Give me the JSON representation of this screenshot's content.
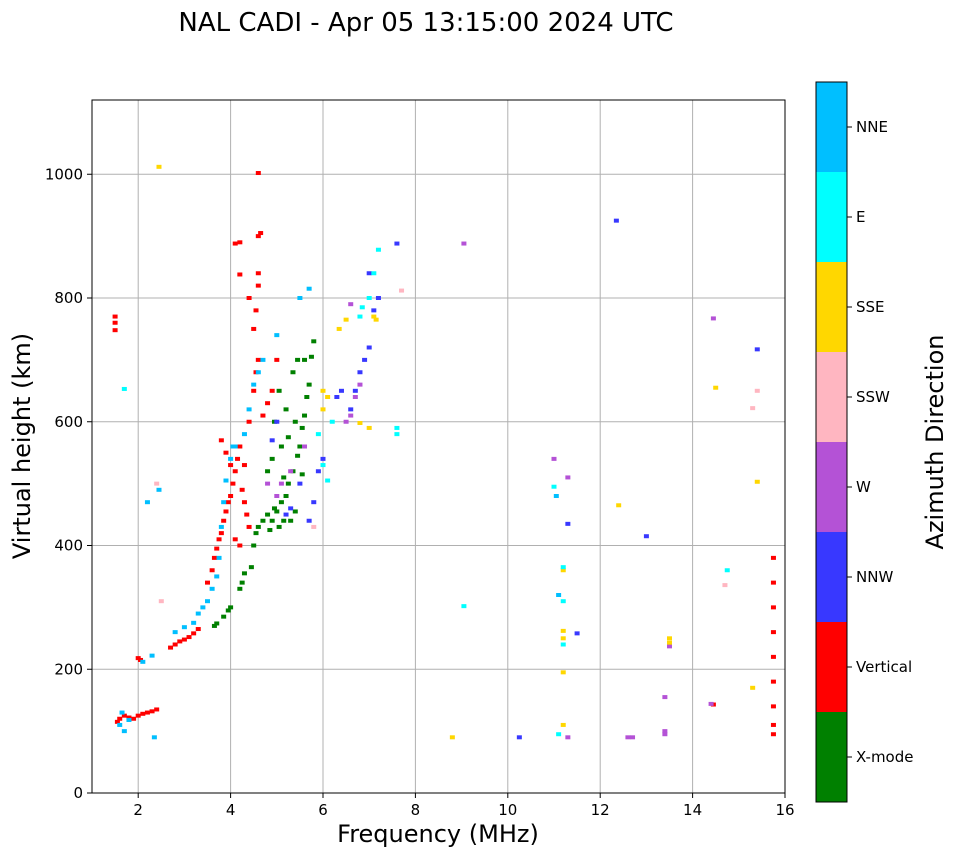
{
  "chart_data": {
    "type": "scatter",
    "title": "NAL CADI - Apr 05 13:15:00 2024 UTC",
    "xlabel": "Frequency (MHz)",
    "ylabel": "Virtual height (km)",
    "xlim": [
      1,
      16
    ],
    "ylim": [
      0,
      1120
    ],
    "xticks": [
      2,
      4,
      6,
      8,
      10,
      12,
      14,
      16
    ],
    "yticks": [
      0,
      200,
      400,
      600,
      800,
      1000
    ],
    "grid": true,
    "colorbar": {
      "label": "Azimuth Direction",
      "categories": [
        {
          "name": "X-mode",
          "color": "#008000"
        },
        {
          "name": "Vertical",
          "color": "#ff0000"
        },
        {
          "name": "NNW",
          "color": "#3838ff"
        },
        {
          "name": "W",
          "color": "#b452d6"
        },
        {
          "name": "SSW",
          "color": "#ffb6c1"
        },
        {
          "name": "SSE",
          "color": "#ffd700"
        },
        {
          "name": "E",
          "color": "#00ffff"
        },
        {
          "name": "NNE",
          "color": "#00bfff"
        }
      ]
    },
    "series": [
      {
        "name": "X-mode",
        "color": "#008000",
        "points": [
          [
            3.65,
            270
          ],
          [
            3.7,
            274
          ],
          [
            3.85,
            285
          ],
          [
            3.95,
            295
          ],
          [
            4.0,
            300
          ],
          [
            4.2,
            330
          ],
          [
            4.25,
            340
          ],
          [
            4.3,
            355
          ],
          [
            4.45,
            365
          ],
          [
            4.5,
            400
          ],
          [
            4.55,
            420
          ],
          [
            4.6,
            430
          ],
          [
            4.7,
            440
          ],
          [
            4.8,
            450
          ],
          [
            4.85,
            425
          ],
          [
            4.9,
            440
          ],
          [
            4.95,
            460
          ],
          [
            5.0,
            455
          ],
          [
            5.05,
            430
          ],
          [
            5.1,
            470
          ],
          [
            5.15,
            440
          ],
          [
            5.2,
            480
          ],
          [
            5.25,
            500
          ],
          [
            5.3,
            440
          ],
          [
            5.35,
            520
          ],
          [
            5.4,
            455
          ],
          [
            5.45,
            545
          ],
          [
            5.5,
            560
          ],
          [
            5.55,
            590
          ],
          [
            5.6,
            610
          ],
          [
            5.65,
            640
          ],
          [
            5.7,
            660
          ],
          [
            5.75,
            705
          ],
          [
            5.8,
            730
          ],
          [
            5.2,
            620
          ],
          [
            5.35,
            680
          ],
          [
            5.45,
            700
          ],
          [
            5.05,
            650
          ],
          [
            4.95,
            600
          ],
          [
            5.25,
            575
          ],
          [
            5.55,
            515
          ],
          [
            4.8,
            520
          ],
          [
            5.1,
            560
          ],
          [
            5.6,
            700
          ],
          [
            4.9,
            540
          ],
          [
            5.4,
            600
          ],
          [
            5.15,
            510
          ]
        ]
      },
      {
        "name": "Vertical",
        "color": "#ff0000",
        "points": [
          [
            1.5,
            770
          ],
          [
            1.5,
            760
          ],
          [
            1.5,
            748
          ],
          [
            1.55,
            115
          ],
          [
            1.6,
            120
          ],
          [
            1.7,
            125
          ],
          [
            1.8,
            122
          ],
          [
            1.9,
            120
          ],
          [
            2.0,
            125
          ],
          [
            2.1,
            128
          ],
          [
            2.2,
            130
          ],
          [
            2.3,
            132
          ],
          [
            2.4,
            135
          ],
          [
            2.0,
            218
          ],
          [
            2.05,
            215
          ],
          [
            2.7,
            235
          ],
          [
            2.8,
            240
          ],
          [
            2.9,
            245
          ],
          [
            3.0,
            248
          ],
          [
            3.1,
            252
          ],
          [
            3.2,
            258
          ],
          [
            3.3,
            265
          ],
          [
            3.5,
            340
          ],
          [
            3.6,
            360
          ],
          [
            3.65,
            380
          ],
          [
            3.7,
            395
          ],
          [
            3.75,
            410
          ],
          [
            3.8,
            420
          ],
          [
            3.85,
            440
          ],
          [
            3.9,
            455
          ],
          [
            3.95,
            470
          ],
          [
            4.0,
            480
          ],
          [
            4.05,
            500
          ],
          [
            4.1,
            520
          ],
          [
            4.15,
            540
          ],
          [
            4.2,
            560
          ],
          [
            4.25,
            490
          ],
          [
            4.3,
            470
          ],
          [
            4.35,
            450
          ],
          [
            4.4,
            430
          ],
          [
            3.8,
            570
          ],
          [
            3.9,
            550
          ],
          [
            4.0,
            530
          ],
          [
            4.1,
            410
          ],
          [
            4.2,
            400
          ],
          [
            4.5,
            650
          ],
          [
            4.55,
            680
          ],
          [
            4.6,
            700
          ],
          [
            4.6,
            1002
          ],
          [
            4.6,
            900
          ],
          [
            4.65,
            905
          ],
          [
            4.6,
            840
          ],
          [
            4.55,
            780
          ],
          [
            4.5,
            750
          ],
          [
            4.4,
            800
          ],
          [
            4.2,
            838
          ],
          [
            4.1,
            888
          ],
          [
            4.2,
            890
          ],
          [
            4.6,
            820
          ],
          [
            4.3,
            530
          ],
          [
            4.4,
            600
          ],
          [
            4.7,
            610
          ],
          [
            4.8,
            630
          ],
          [
            4.9,
            650
          ],
          [
            5.0,
            700
          ],
          [
            15.75,
            380
          ],
          [
            15.75,
            340
          ],
          [
            15.75,
            300
          ],
          [
            15.75,
            260
          ],
          [
            15.75,
            220
          ],
          [
            15.75,
            180
          ],
          [
            15.75,
            140
          ],
          [
            15.75,
            110
          ],
          [
            15.75,
            95
          ],
          [
            14.45,
            143
          ]
        ]
      },
      {
        "name": "NNW",
        "color": "#3838ff",
        "points": [
          [
            6.6,
            620
          ],
          [
            6.7,
            650
          ],
          [
            6.8,
            680
          ],
          [
            6.9,
            700
          ],
          [
            7.0,
            720
          ],
          [
            7.1,
            780
          ],
          [
            7.2,
            800
          ],
          [
            7.0,
            840
          ],
          [
            7.6,
            888
          ],
          [
            5.8,
            470
          ],
          [
            5.7,
            440
          ],
          [
            5.9,
            520
          ],
          [
            6.0,
            540
          ],
          [
            12.35,
            925
          ],
          [
            15.4,
            717
          ],
          [
            13.0,
            415
          ],
          [
            11.3,
            435
          ],
          [
            11.5,
            258
          ],
          [
            10.25,
            90
          ],
          [
            5.3,
            460
          ],
          [
            5.5,
            500
          ],
          [
            5.2,
            450
          ],
          [
            4.9,
            570
          ],
          [
            5.0,
            600
          ],
          [
            6.4,
            650
          ],
          [
            6.3,
            640
          ]
        ]
      },
      {
        "name": "W",
        "color": "#b452d6",
        "points": [
          [
            9.05,
            888
          ],
          [
            6.6,
            790
          ],
          [
            6.7,
            640
          ],
          [
            6.8,
            660
          ],
          [
            6.6,
            610
          ],
          [
            6.5,
            600
          ],
          [
            11.0,
            540
          ],
          [
            11.3,
            510
          ],
          [
            13.4,
            155
          ],
          [
            13.4,
            100
          ],
          [
            13.4,
            95
          ],
          [
            13.5,
            237
          ],
          [
            12.6,
            90
          ],
          [
            12.7,
            90
          ],
          [
            11.3,
            90
          ],
          [
            14.45,
            767
          ],
          [
            14.4,
            144
          ],
          [
            5.0,
            480
          ],
          [
            5.1,
            500
          ],
          [
            5.3,
            520
          ],
          [
            5.6,
            560
          ],
          [
            4.8,
            500
          ]
        ]
      },
      {
        "name": "SSW",
        "color": "#ffb6c1",
        "points": [
          [
            15.4,
            650
          ],
          [
            15.3,
            622
          ],
          [
            14.7,
            336
          ],
          [
            7.7,
            812
          ],
          [
            2.4,
            500
          ],
          [
            2.5,
            310
          ],
          [
            5.8,
            430
          ]
        ]
      },
      {
        "name": "SSE",
        "color": "#ffd700",
        "points": [
          [
            2.45,
            1012
          ],
          [
            6.5,
            765
          ],
          [
            6.35,
            750
          ],
          [
            6.0,
            650
          ],
          [
            6.1,
            640
          ],
          [
            6.0,
            620
          ],
          [
            6.8,
            598
          ],
          [
            7.0,
            590
          ],
          [
            11.2,
            110
          ],
          [
            11.2,
            195
          ],
          [
            11.2,
            250
          ],
          [
            11.2,
            262
          ],
          [
            11.2,
            360
          ],
          [
            12.4,
            465
          ],
          [
            13.5,
            250
          ],
          [
            13.5,
            243
          ],
          [
            14.5,
            655
          ],
          [
            15.4,
            503
          ],
          [
            15.3,
            170
          ],
          [
            8.8,
            90
          ],
          [
            7.1,
            770
          ],
          [
            7.15,
            765
          ]
        ]
      },
      {
        "name": "E",
        "color": "#00ffff",
        "points": [
          [
            1.7,
            653
          ],
          [
            7.2,
            878
          ],
          [
            7.1,
            840
          ],
          [
            7.0,
            800
          ],
          [
            6.85,
            785
          ],
          [
            6.8,
            770
          ],
          [
            7.6,
            580
          ],
          [
            7.6,
            590
          ],
          [
            11.0,
            495
          ],
          [
            11.2,
            240
          ],
          [
            11.2,
            310
          ],
          [
            11.2,
            365
          ],
          [
            9.05,
            302
          ],
          [
            14.75,
            360
          ],
          [
            11.1,
            95
          ],
          [
            6.0,
            530
          ],
          [
            6.1,
            505
          ],
          [
            5.9,
            580
          ],
          [
            6.2,
            600
          ]
        ]
      },
      {
        "name": "NNE",
        "color": "#00bfff",
        "points": [
          [
            1.65,
            130
          ],
          [
            1.6,
            110
          ],
          [
            1.7,
            100
          ],
          [
            1.8,
            118
          ],
          [
            2.3,
            222
          ],
          [
            2.1,
            212
          ],
          [
            2.35,
            90
          ],
          [
            2.8,
            260
          ],
          [
            3.0,
            268
          ],
          [
            3.2,
            275
          ],
          [
            3.3,
            290
          ],
          [
            3.4,
            300
          ],
          [
            3.5,
            310
          ],
          [
            3.6,
            330
          ],
          [
            3.7,
            350
          ],
          [
            3.75,
            380
          ],
          [
            3.8,
            430
          ],
          [
            3.85,
            470
          ],
          [
            3.9,
            505
          ],
          [
            4.0,
            540
          ],
          [
            4.05,
            560
          ],
          [
            4.1,
            560
          ],
          [
            4.3,
            580
          ],
          [
            4.4,
            620
          ],
          [
            4.5,
            660
          ],
          [
            4.6,
            680
          ],
          [
            4.7,
            700
          ],
          [
            5.0,
            740
          ],
          [
            5.5,
            800
          ],
          [
            5.7,
            815
          ],
          [
            11.1,
            320
          ],
          [
            11.05,
            480
          ],
          [
            2.45,
            490
          ],
          [
            2.2,
            470
          ]
        ]
      }
    ]
  }
}
